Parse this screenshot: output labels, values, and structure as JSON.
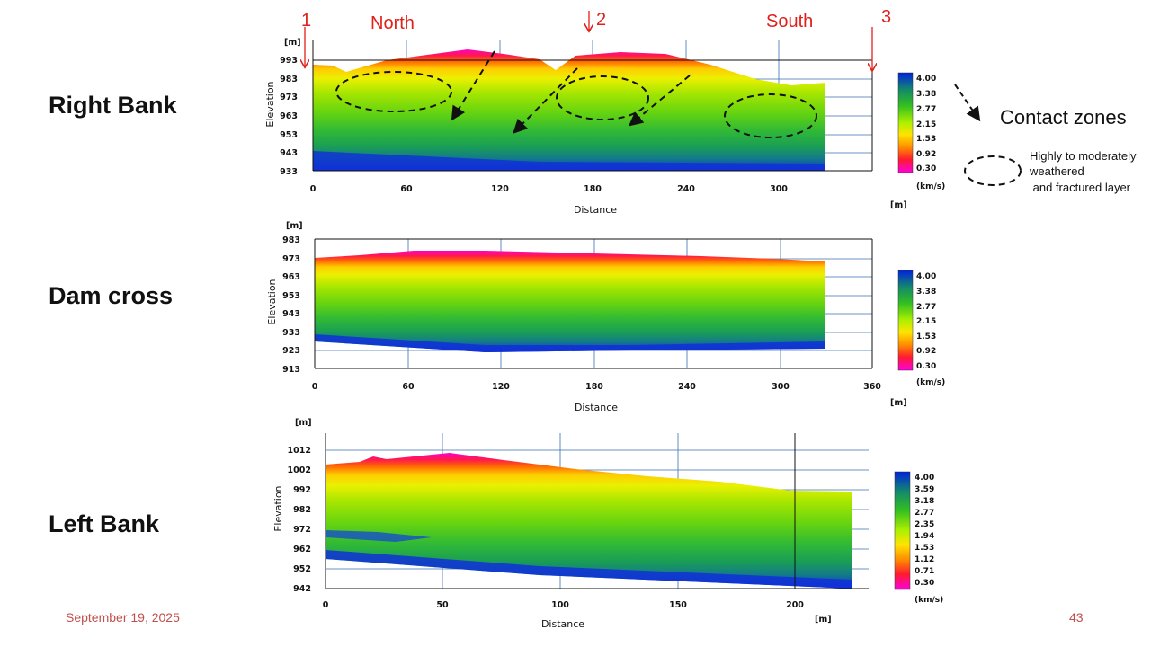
{
  "labels": {
    "right_bank": "Right Bank",
    "dam_cross": "Dam cross",
    "left_bank": "Left Bank",
    "marker_1": "1",
    "marker_2": "2",
    "marker_3": "3",
    "north": "North",
    "south": "South"
  },
  "legend_notes": {
    "contact": "Contact zones",
    "weathered_line1": "Highly to moderately",
    "weathered_line2": "weathered",
    "weathered_line3": " and fractured layer"
  },
  "footer": {
    "date": "September 19, 2025",
    "page": "43"
  },
  "colors": {
    "accent_red": "#e0201a",
    "footer": "#c0504d"
  },
  "chart_data": [
    {
      "type": "heatmap",
      "name": "Right Bank",
      "xlabel": "Distance",
      "xunit": "[m]",
      "ylabel": "Elevation",
      "yunit": "[m]",
      "x_ticks": [
        "0",
        "60",
        "120",
        "180",
        "240",
        "300"
      ],
      "y_ticks": [
        "993",
        "983",
        "973",
        "963",
        "953",
        "943",
        "933"
      ],
      "legend_unit": "(km/s)",
      "legend_values": [
        "4.00",
        "3.38",
        "2.77",
        "2.15",
        "1.53",
        "0.92",
        "0.30"
      ]
    },
    {
      "type": "heatmap",
      "name": "Dam cross",
      "xlabel": "Distance",
      "xunit": "[m]",
      "ylabel": "Elevation",
      "yunit": "[m]",
      "x_ticks": [
        "0",
        "60",
        "120",
        "180",
        "240",
        "300",
        "360"
      ],
      "y_ticks": [
        "983",
        "973",
        "963",
        "953",
        "943",
        "933",
        "923",
        "913"
      ],
      "legend_unit": "(km/s)",
      "legend_values": [
        "4.00",
        "3.38",
        "2.77",
        "2.15",
        "1.53",
        "0.92",
        "0.30"
      ]
    },
    {
      "type": "heatmap",
      "name": "Left Bank",
      "xlabel": "Distance",
      "xunit": "[m]",
      "ylabel": "Elevation",
      "yunit": "[m]",
      "x_ticks": [
        "0",
        "50",
        "100",
        "150",
        "200"
      ],
      "y_ticks": [
        "1012",
        "1002",
        "992",
        "982",
        "972",
        "962",
        "952",
        "942"
      ],
      "legend_unit": "(km/s)",
      "legend_values": [
        "4.00",
        "3.59",
        "3.18",
        "2.77",
        "2.35",
        "1.94",
        "1.53",
        "1.12",
        "0.71",
        "0.30"
      ]
    }
  ]
}
